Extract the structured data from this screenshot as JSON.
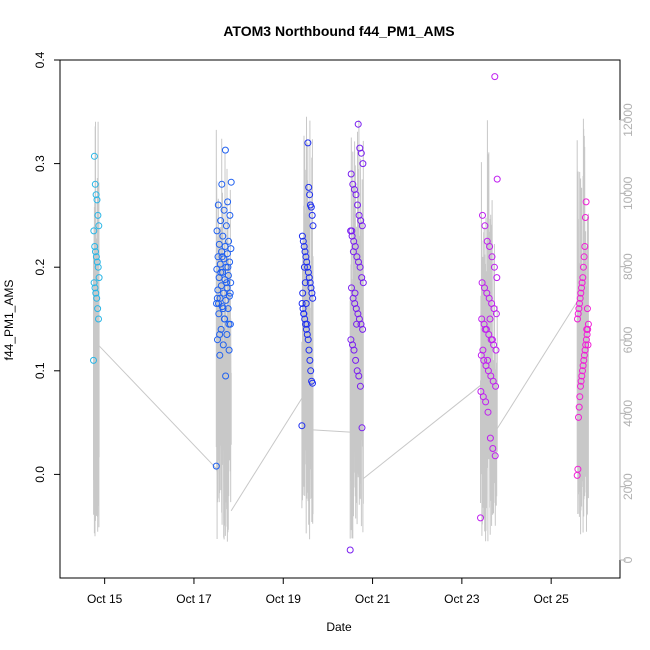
{
  "chart_data": {
    "type": "scatter",
    "title": "ATOM3 Northbound f44_PM1_AMS",
    "xlabel": "Date",
    "ylabel": "f44_PM1_AMS",
    "xlim": [
      "2017-10-14T00:00",
      "2017-10-26T13:00"
    ],
    "ylim": [
      -0.1,
      0.4
    ],
    "y_ticks": [
      0.0,
      0.1,
      0.2,
      0.3,
      0.4
    ],
    "x_ticks": [
      "Oct 15",
      "Oct 17",
      "Oct 19",
      "Oct 21",
      "Oct 23",
      "Oct 25"
    ],
    "y2_range": [
      0,
      12000
    ],
    "y2_ticks": [
      0,
      2000,
      4000,
      6000,
      8000,
      10000,
      12000
    ],
    "y2_label": "",
    "grid": false,
    "legend": "none",
    "colors": {
      "background_line": "#c8c8c8",
      "point_start": "#2ab6e6",
      "point_mid": "#1f2ff0",
      "point_late": "#9b1ff0",
      "point_end": "#f01fd6"
    },
    "flights": [
      {
        "t_start": "2017-10-14T18:00",
        "t_end": "2017-10-14T21:00",
        "color": "#2ab6e6",
        "values": [
          0.11,
          0.15,
          0.16,
          0.17,
          0.175,
          0.18,
          0.185,
          0.19,
          0.2,
          0.205,
          0.21,
          0.215,
          0.22,
          0.235,
          0.24,
          0.25,
          0.265,
          0.27,
          0.28,
          0.307
        ]
      },
      {
        "t_start": "2017-10-17T12:00",
        "t_end": "2017-10-17T20:00",
        "color": "#1f60f0",
        "values": [
          0.008,
          0.095,
          0.115,
          0.12,
          0.125,
          0.13,
          0.135,
          0.14,
          0.145,
          0.15,
          0.155,
          0.16,
          0.162,
          0.165,
          0.168,
          0.17,
          0.172,
          0.175,
          0.178,
          0.18,
          0.182,
          0.185,
          0.188,
          0.19,
          0.192,
          0.195,
          0.198,
          0.2,
          0.203,
          0.205,
          0.208,
          0.21,
          0.213,
          0.215,
          0.218,
          0.22,
          0.222,
          0.225,
          0.23,
          0.235,
          0.24,
          0.245,
          0.25,
          0.255,
          0.26,
          0.263,
          0.28,
          0.282,
          0.313,
          0.135,
          0.145,
          0.16,
          0.17,
          0.185,
          0.195,
          0.175,
          0.15,
          0.165,
          0.2,
          0.21
        ]
      },
      {
        "t_start": "2017-10-19T10:00",
        "t_end": "2017-10-19T16:00",
        "color": "#1f2ff0",
        "values": [
          0.047,
          0.088,
          0.09,
          0.1,
          0.11,
          0.12,
          0.13,
          0.135,
          0.14,
          0.145,
          0.15,
          0.155,
          0.16,
          0.165,
          0.17,
          0.175,
          0.18,
          0.185,
          0.19,
          0.195,
          0.2,
          0.205,
          0.21,
          0.215,
          0.22,
          0.225,
          0.23,
          0.24,
          0.25,
          0.258,
          0.26,
          0.27,
          0.277,
          0.32,
          0.145,
          0.165,
          0.185,
          0.2,
          0.155,
          0.175
        ]
      },
      {
        "t_start": "2017-10-20T12:00",
        "t_end": "2017-10-20T19:00",
        "color": "#7a1ff0",
        "values": [
          -0.073,
          0.045,
          0.085,
          0.095,
          0.1,
          0.11,
          0.12,
          0.125,
          0.13,
          0.14,
          0.145,
          0.15,
          0.155,
          0.16,
          0.165,
          0.17,
          0.18,
          0.185,
          0.19,
          0.2,
          0.205,
          0.21,
          0.22,
          0.225,
          0.23,
          0.235,
          0.24,
          0.245,
          0.25,
          0.26,
          0.27,
          0.275,
          0.28,
          0.29,
          0.3,
          0.31,
          0.315,
          0.338,
          0.145,
          0.175,
          0.215,
          0.235
        ]
      },
      {
        "t_start": "2017-10-23T10:00",
        "t_end": "2017-10-23T19:00",
        "color": "#c01ff0",
        "values": [
          -0.042,
          0.018,
          0.025,
          0.035,
          0.06,
          0.07,
          0.075,
          0.08,
          0.085,
          0.09,
          0.095,
          0.1,
          0.105,
          0.11,
          0.115,
          0.12,
          0.125,
          0.13,
          0.135,
          0.14,
          0.145,
          0.15,
          0.155,
          0.16,
          0.165,
          0.17,
          0.175,
          0.18,
          0.185,
          0.19,
          0.2,
          0.21,
          0.22,
          0.225,
          0.24,
          0.25,
          0.285,
          0.384,
          0.13,
          0.15,
          0.11,
          0.14,
          0.12
        ]
      },
      {
        "t_start": "2017-10-25T14:00",
        "t_end": "2017-10-25T20:00",
        "color": "#f01fd6",
        "values": [
          -0.001,
          0.005,
          0.055,
          0.065,
          0.075,
          0.085,
          0.09,
          0.095,
          0.1,
          0.105,
          0.11,
          0.115,
          0.12,
          0.125,
          0.13,
          0.135,
          0.14,
          0.145,
          0.15,
          0.155,
          0.16,
          0.165,
          0.17,
          0.175,
          0.18,
          0.185,
          0.19,
          0.2,
          0.21,
          0.22,
          0.248,
          0.263,
          0.14,
          0.16,
          0.125
        ]
      }
    ]
  }
}
